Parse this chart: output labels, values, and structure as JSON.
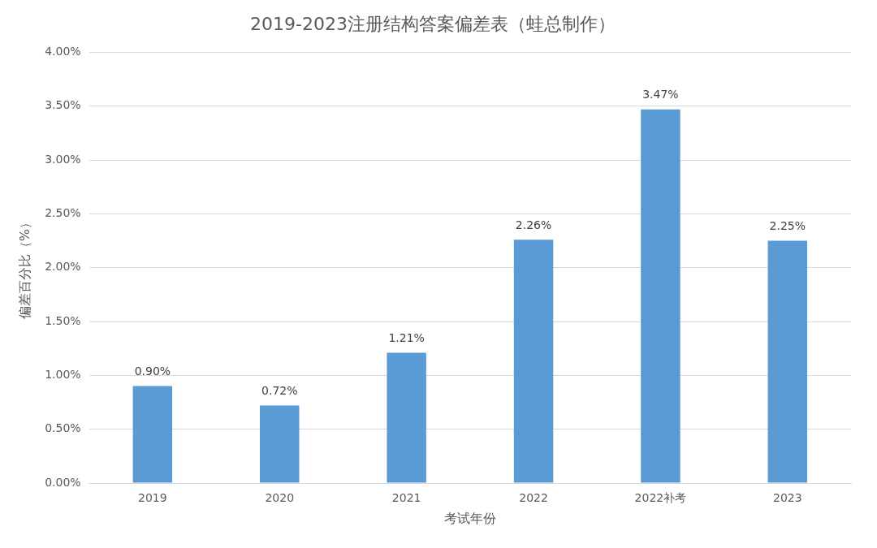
{
  "chart_data": {
    "type": "bar",
    "title": "2019-2023注册结构答案偏差表（蛙总制作）",
    "xlabel": "考试年份",
    "ylabel": "偏差百分比（%）",
    "categories": [
      "2019",
      "2020",
      "2021",
      "2022",
      "2022补考",
      "2023"
    ],
    "values": [
      0.9,
      0.72,
      1.21,
      2.26,
      3.47,
      2.25
    ],
    "value_labels": [
      "0.90%",
      "0.72%",
      "1.21%",
      "2.26%",
      "3.47%",
      "2.25%"
    ],
    "color": "#5b9bd5",
    "ylim": [
      0,
      4
    ],
    "yticks": [
      {
        "value": 0,
        "label": "0.00%"
      },
      {
        "value": 0.5,
        "label": "0.50%"
      },
      {
        "value": 1,
        "label": "1.00%"
      },
      {
        "value": 1.5,
        "label": "1.50%"
      },
      {
        "value": 2,
        "label": "2.00%"
      },
      {
        "value": 2.5,
        "label": "2.50%"
      },
      {
        "value": 3,
        "label": "3.00%"
      },
      {
        "value": 3.5,
        "label": "3.50%"
      },
      {
        "value": 4,
        "label": "4.00%"
      }
    ],
    "grid": "y",
    "legend": false
  }
}
